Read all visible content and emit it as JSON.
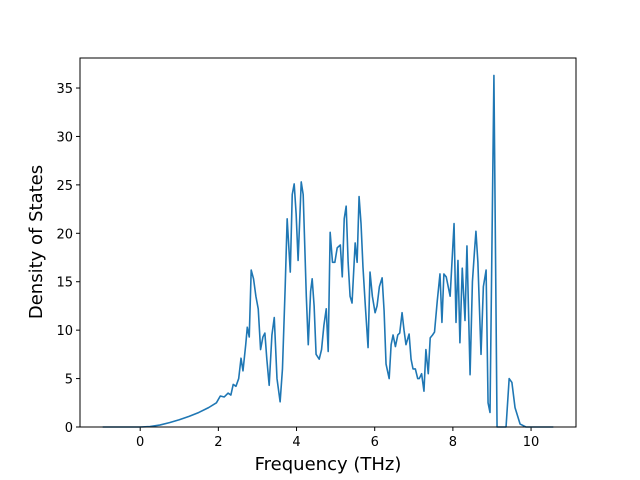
{
  "chart_data": {
    "type": "line",
    "x_label": "Frequency (THz)",
    "y_label": "Density of States",
    "x": [
      -0.96,
      -0.5,
      0,
      0.25,
      0.5,
      0.75,
      1.0,
      1.25,
      1.5,
      1.75,
      1.95,
      2.05,
      2.15,
      2.25,
      2.32,
      2.38,
      2.45,
      2.52,
      2.58,
      2.63,
      2.7,
      2.74,
      2.79,
      2.84,
      2.9,
      2.96,
      3.02,
      3.08,
      3.14,
      3.19,
      3.24,
      3.3,
      3.37,
      3.43,
      3.5,
      3.58,
      3.64,
      3.71,
      3.76,
      3.84,
      3.89,
      3.94,
      3.99,
      4.04,
      4.12,
      4.17,
      4.25,
      4.3,
      4.36,
      4.4,
      4.45,
      4.5,
      4.58,
      4.64,
      4.7,
      4.76,
      4.81,
      4.86,
      4.92,
      4.98,
      5.04,
      5.12,
      5.17,
      5.22,
      5.27,
      5.32,
      5.37,
      5.42,
      5.5,
      5.55,
      5.6,
      5.65,
      5.7,
      5.76,
      5.83,
      5.88,
      5.94,
      6.01,
      6.06,
      6.12,
      6.19,
      6.24,
      6.29,
      6.37,
      6.42,
      6.47,
      6.53,
      6.59,
      6.64,
      6.7,
      6.75,
      6.8,
      6.88,
      6.93,
      6.98,
      7.04,
      7.1,
      7.14,
      7.2,
      7.26,
      7.31,
      7.37,
      7.42,
      7.48,
      7.53,
      7.6,
      7.67,
      7.72,
      7.77,
      7.83,
      7.93,
      8.03,
      8.08,
      8.13,
      8.18,
      8.24,
      8.31,
      8.36,
      8.44,
      8.5,
      8.55,
      8.59,
      8.64,
      8.72,
      8.78,
      8.85,
      8.9,
      8.95,
      9.05,
      9.13,
      9.36,
      9.44,
      9.51,
      9.59,
      9.72,
      9.87,
      10.2,
      10.57
    ],
    "series": [
      {
        "color": "#1f77b4",
        "values": [
          0,
          0,
          0,
          0.05,
          0.2,
          0.45,
          0.75,
          1.1,
          1.5,
          2.0,
          2.5,
          3.2,
          3.1,
          3.5,
          3.3,
          4.4,
          4.2,
          5.0,
          7.1,
          5.8,
          8.5,
          10.3,
          9.3,
          16.2,
          15.3,
          13.5,
          12.2,
          8.0,
          9.3,
          9.7,
          7.0,
          4.3,
          9.5,
          11.3,
          5.0,
          2.6,
          6.0,
          14.5,
          21.5,
          16.0,
          24.0,
          25.1,
          22.0,
          17.2,
          25.3,
          24.0,
          13.5,
          8.5,
          14.0,
          15.3,
          12.5,
          7.5,
          7.0,
          8.0,
          10.5,
          12.2,
          7.8,
          20.1,
          17.0,
          17.0,
          18.5,
          18.8,
          15.5,
          21.5,
          22.8,
          17.0,
          13.5,
          12.8,
          19.0,
          17.0,
          23.8,
          21.0,
          16.5,
          12.5,
          8.2,
          16.0,
          13.5,
          11.8,
          12.5,
          14.5,
          15.4,
          12.0,
          6.5,
          5.0,
          8.5,
          9.5,
          8.3,
          9.5,
          9.7,
          11.8,
          10.0,
          8.5,
          9.6,
          7.0,
          6.0,
          6.0,
          5.0,
          5.0,
          5.5,
          3.7,
          8.0,
          5.5,
          9.2,
          9.5,
          9.8,
          13.0,
          15.8,
          10.8,
          15.8,
          15.5,
          13.5,
          21.0,
          10.8,
          17.2,
          8.7,
          16.4,
          11.0,
          18.7,
          5.4,
          15.0,
          18.0,
          20.2,
          17.0,
          7.5,
          14.5,
          16.2,
          2.5,
          1.5,
          36.3,
          0,
          0,
          5.0,
          4.6,
          2.0,
          0.3,
          0,
          0,
          0
        ]
      }
    ],
    "xlim": [
      -1.54,
      11.15
    ],
    "ylim": [
      0,
      38.1
    ],
    "xticks": [
      0,
      2,
      4,
      6,
      8,
      10
    ],
    "yticks": [
      0,
      5,
      10,
      15,
      20,
      25,
      30,
      35
    ]
  }
}
